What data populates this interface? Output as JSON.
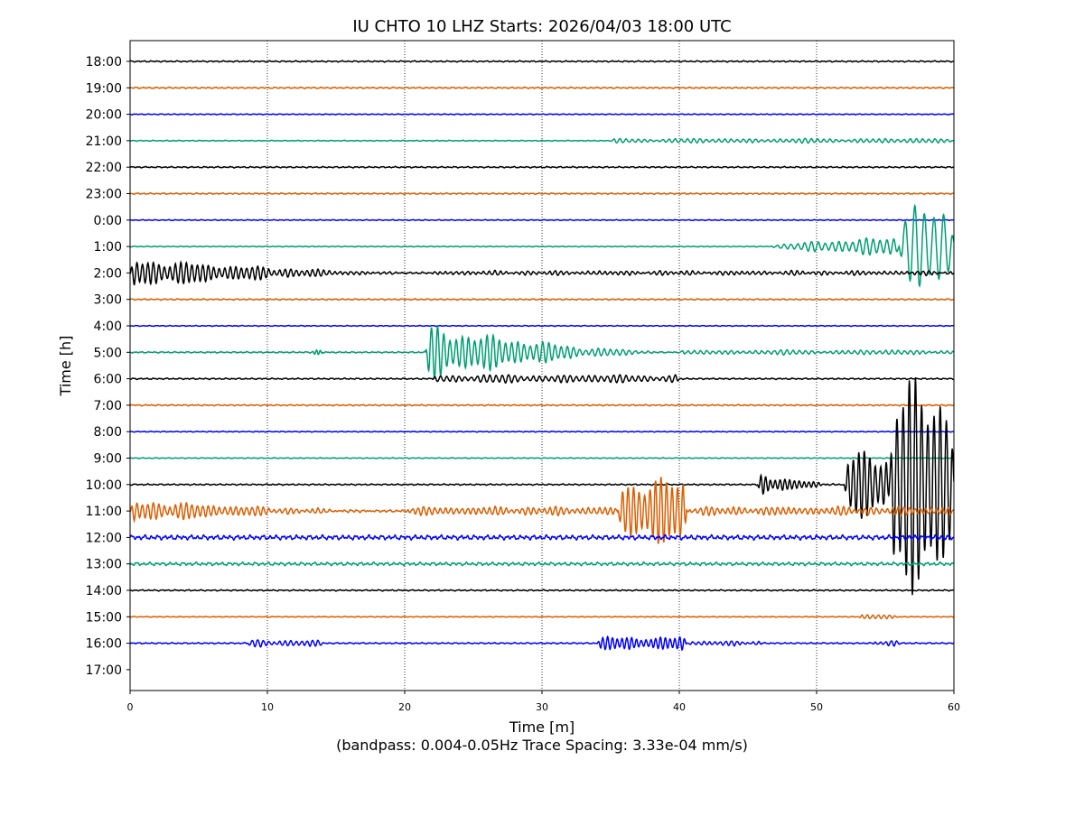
{
  "chart_data": {
    "type": "line",
    "title": "IU CHTO 10 LHZ  Starts: 2026/04/03 18:00 UTC",
    "xlabel": "Time [m]",
    "subtitle": "(bandpass: 0.004-0.05Hz  Trace Spacing: 3.33e-04 mm/s)",
    "ylabel": "Time [h]",
    "xlim": [
      0,
      60
    ],
    "xticks": [
      "0",
      "10",
      "20",
      "30",
      "40",
      "50",
      "60"
    ],
    "grid": "vertical dotted at x ticks",
    "amplitude_units": "trace spacings",
    "yticks": [
      "18:00",
      "19:00",
      "20:00",
      "21:00",
      "22:00",
      "23:00",
      "0:00",
      "1:00",
      "2:00",
      "3:00",
      "4:00",
      "5:00",
      "6:00",
      "7:00",
      "8:00",
      "9:00",
      "10:00",
      "11:00",
      "12:00",
      "13:00",
      "14:00",
      "15:00",
      "16:00",
      "17:00"
    ],
    "colors": [
      "#000000",
      "#d95f02",
      "#0000ff",
      "#009e73"
    ],
    "traces": [
      {
        "hour": "18:00",
        "noise": 0.03,
        "events": []
      },
      {
        "hour": "19:00",
        "noise": 0.03,
        "events": []
      },
      {
        "hour": "20:00",
        "noise": 0.02,
        "events": []
      },
      {
        "hour": "21:00",
        "noise": 0.02,
        "events": [
          {
            "start": 35,
            "end": 60,
            "amp": 0.08,
            "period": 0.45,
            "shape": "box"
          }
        ]
      },
      {
        "hour": "22:00",
        "noise": 0.03,
        "events": []
      },
      {
        "hour": "23:00",
        "noise": 0.03,
        "events": []
      },
      {
        "hour": "0:00",
        "noise": 0.02,
        "events": []
      },
      {
        "hour": "1:00",
        "noise": 0.02,
        "events": [
          {
            "start": 46.5,
            "end": 56,
            "amp": 0.4,
            "period": 0.5,
            "shape": "grow"
          },
          {
            "start": 56,
            "end": 60,
            "amp": 1.6,
            "period": 0.7,
            "shape": "box"
          }
        ]
      },
      {
        "hour": "2:00",
        "noise": 0.04,
        "events": [
          {
            "start": 0,
            "end": 22,
            "amp": 0.6,
            "period": 0.4,
            "shape": "decay"
          },
          {
            "start": 22,
            "end": 60,
            "amp": 0.07,
            "period": 0.4,
            "shape": "box"
          }
        ]
      },
      {
        "hour": "3:00",
        "noise": 0.03,
        "events": []
      },
      {
        "hour": "4:00",
        "noise": 0.02,
        "events": []
      },
      {
        "hour": "5:00",
        "noise": 0.03,
        "events": [
          {
            "start": 13.2,
            "end": 14,
            "amp": 0.12,
            "period": 0.3,
            "shape": "box"
          },
          {
            "start": 21.5,
            "end": 40,
            "amp": 1.1,
            "period": 0.45,
            "shape": "decay"
          },
          {
            "start": 40,
            "end": 60,
            "amp": 0.08,
            "period": 0.45,
            "shape": "box"
          }
        ]
      },
      {
        "hour": "6:00",
        "noise": 0.03,
        "events": [
          {
            "start": 22,
            "end": 40,
            "amp": 0.15,
            "period": 0.45,
            "shape": "box"
          }
        ]
      },
      {
        "hour": "7:00",
        "noise": 0.03,
        "events": []
      },
      {
        "hour": "8:00",
        "noise": 0.02,
        "events": []
      },
      {
        "hour": "9:00",
        "noise": 0.02,
        "events": []
      },
      {
        "hour": "10:00",
        "noise": 0.03,
        "events": [
          {
            "start": 45.7,
            "end": 52,
            "amp": 0.5,
            "period": 0.35,
            "shape": "decay"
          },
          {
            "start": 52,
            "end": 55.3,
            "amp": 1.3,
            "period": 0.4,
            "shape": "box"
          },
          {
            "start": 55.3,
            "end": 60,
            "amp": 4.2,
            "period": 0.45,
            "shape": "box"
          }
        ]
      },
      {
        "hour": "11:00",
        "noise": 0.05,
        "events": [
          {
            "start": 0,
            "end": 20,
            "amp": 0.45,
            "period": 0.4,
            "shape": "decay"
          },
          {
            "start": 20,
            "end": 35.5,
            "amp": 0.15,
            "period": 0.4,
            "shape": "box"
          },
          {
            "start": 35.5,
            "end": 40.5,
            "amp": 1.3,
            "period": 0.4,
            "shape": "box"
          },
          {
            "start": 40.5,
            "end": 60,
            "amp": 0.15,
            "period": 0.4,
            "shape": "box"
          }
        ]
      },
      {
        "hour": "12:00",
        "noise": 0.1,
        "events": []
      },
      {
        "hour": "13:00",
        "noise": 0.07,
        "events": []
      },
      {
        "hour": "14:00",
        "noise": 0.03,
        "events": []
      },
      {
        "hour": "15:00",
        "noise": 0.02,
        "events": [
          {
            "start": 53,
            "end": 56,
            "amp": 0.08,
            "period": 0.4,
            "shape": "box"
          }
        ]
      },
      {
        "hour": "16:00",
        "noise": 0.03,
        "events": [
          {
            "start": 8.5,
            "end": 14,
            "amp": 0.12,
            "period": 0.4,
            "shape": "box"
          },
          {
            "start": 34,
            "end": 40.5,
            "amp": 0.25,
            "period": 0.35,
            "shape": "box"
          },
          {
            "start": 40.5,
            "end": 46,
            "amp": 0.08,
            "period": 0.4,
            "shape": "box"
          },
          {
            "start": 54,
            "end": 56,
            "amp": 0.1,
            "period": 0.4,
            "shape": "box"
          }
        ]
      }
    ]
  }
}
